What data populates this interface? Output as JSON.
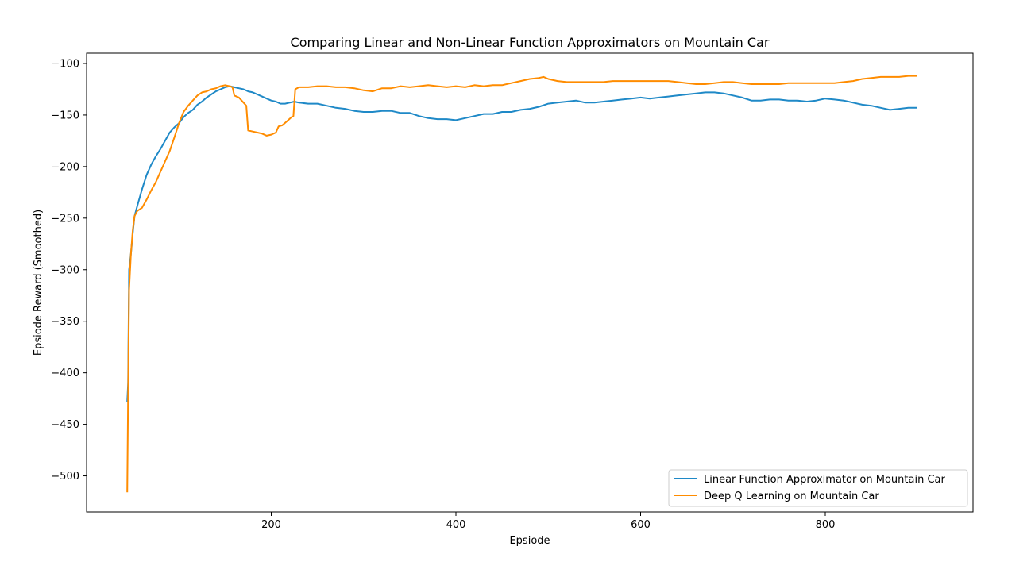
{
  "chart_data": {
    "type": "line",
    "title": "Comparing Linear and Non-Linear Function Approximators on Mountain Car",
    "xlabel": "Epsiode",
    "ylabel": "Epsiode Reward (Smoothed)",
    "xlim": [
      0,
      960
    ],
    "ylim": [
      -535,
      -90
    ],
    "x_ticks": [
      200,
      400,
      600,
      800
    ],
    "y_ticks": [
      -100,
      -150,
      -200,
      -250,
      -300,
      -350,
      -400,
      -450,
      -500
    ],
    "x_tick_labels": [
      "200",
      "400",
      "600",
      "800"
    ],
    "y_tick_labels": [
      "−100",
      "−150",
      "−200",
      "−250",
      "−300",
      "−350",
      "−400",
      "−450",
      "−500"
    ],
    "grid": false,
    "legend_position": "bottom-right",
    "series": [
      {
        "name": "Linear Function Approximator on Mountain Car",
        "color": "#1f89c7",
        "points": [
          [
            44,
            -428
          ],
          [
            45,
            -410
          ],
          [
            46,
            -300
          ],
          [
            48,
            -285
          ],
          [
            50,
            -265
          ],
          [
            52,
            -248
          ],
          [
            55,
            -238
          ],
          [
            60,
            -222
          ],
          [
            65,
            -208
          ],
          [
            70,
            -198
          ],
          [
            75,
            -190
          ],
          [
            80,
            -183
          ],
          [
            85,
            -175
          ],
          [
            90,
            -167
          ],
          [
            95,
            -162
          ],
          [
            100,
            -158
          ],
          [
            105,
            -152
          ],
          [
            110,
            -148
          ],
          [
            115,
            -145
          ],
          [
            120,
            -140
          ],
          [
            125,
            -137
          ],
          [
            130,
            -133
          ],
          [
            135,
            -130
          ],
          [
            140,
            -127
          ],
          [
            145,
            -125
          ],
          [
            150,
            -123
          ],
          [
            155,
            -122
          ],
          [
            160,
            -123
          ],
          [
            165,
            -124
          ],
          [
            170,
            -125
          ],
          [
            175,
            -127
          ],
          [
            180,
            -128
          ],
          [
            185,
            -130
          ],
          [
            190,
            -132
          ],
          [
            195,
            -134
          ],
          [
            200,
            -136
          ],
          [
            205,
            -137
          ],
          [
            210,
            -139
          ],
          [
            215,
            -139
          ],
          [
            220,
            -138
          ],
          [
            225,
            -137
          ],
          [
            230,
            -138
          ],
          [
            240,
            -139
          ],
          [
            250,
            -139
          ],
          [
            260,
            -141
          ],
          [
            270,
            -143
          ],
          [
            280,
            -144
          ],
          [
            290,
            -146
          ],
          [
            300,
            -147
          ],
          [
            310,
            -147
          ],
          [
            320,
            -146
          ],
          [
            330,
            -146
          ],
          [
            340,
            -148
          ],
          [
            350,
            -148
          ],
          [
            360,
            -151
          ],
          [
            370,
            -153
          ],
          [
            380,
            -154
          ],
          [
            390,
            -154
          ],
          [
            400,
            -155
          ],
          [
            410,
            -153
          ],
          [
            420,
            -151
          ],
          [
            430,
            -149
          ],
          [
            440,
            -149
          ],
          [
            450,
            -147
          ],
          [
            460,
            -147
          ],
          [
            470,
            -145
          ],
          [
            480,
            -144
          ],
          [
            490,
            -142
          ],
          [
            500,
            -139
          ],
          [
            510,
            -138
          ],
          [
            520,
            -137
          ],
          [
            530,
            -136
          ],
          [
            540,
            -138
          ],
          [
            550,
            -138
          ],
          [
            560,
            -137
          ],
          [
            570,
            -136
          ],
          [
            580,
            -135
          ],
          [
            590,
            -134
          ],
          [
            600,
            -133
          ],
          [
            610,
            -134
          ],
          [
            620,
            -133
          ],
          [
            630,
            -132
          ],
          [
            640,
            -131
          ],
          [
            650,
            -130
          ],
          [
            660,
            -129
          ],
          [
            670,
            -128
          ],
          [
            680,
            -128
          ],
          [
            690,
            -129
          ],
          [
            700,
            -131
          ],
          [
            710,
            -133
          ],
          [
            720,
            -136
          ],
          [
            730,
            -136
          ],
          [
            740,
            -135
          ],
          [
            750,
            -135
          ],
          [
            760,
            -136
          ],
          [
            770,
            -136
          ],
          [
            780,
            -137
          ],
          [
            790,
            -136
          ],
          [
            800,
            -134
          ],
          [
            810,
            -135
          ],
          [
            820,
            -136
          ],
          [
            830,
            -138
          ],
          [
            840,
            -140
          ],
          [
            850,
            -141
          ],
          [
            860,
            -143
          ],
          [
            870,
            -145
          ],
          [
            880,
            -144
          ],
          [
            890,
            -143
          ],
          [
            899,
            -143
          ]
        ]
      },
      {
        "name": "Deep Q Learning on Mountain Car",
        "color": "#ff8c00",
        "points": [
          [
            44,
            -516
          ],
          [
            45,
            -420
          ],
          [
            46,
            -320
          ],
          [
            48,
            -285
          ],
          [
            50,
            -262
          ],
          [
            52,
            -248
          ],
          [
            55,
            -243
          ],
          [
            60,
            -240
          ],
          [
            65,
            -232
          ],
          [
            70,
            -223
          ],
          [
            75,
            -215
          ],
          [
            80,
            -205
          ],
          [
            85,
            -195
          ],
          [
            90,
            -185
          ],
          [
            95,
            -172
          ],
          [
            100,
            -158
          ],
          [
            105,
            -147
          ],
          [
            110,
            -141
          ],
          [
            115,
            -136
          ],
          [
            120,
            -131
          ],
          [
            125,
            -128
          ],
          [
            130,
            -127
          ],
          [
            135,
            -125
          ],
          [
            140,
            -124
          ],
          [
            145,
            -122
          ],
          [
            150,
            -121
          ],
          [
            155,
            -122
          ],
          [
            158,
            -123
          ],
          [
            160,
            -131
          ],
          [
            165,
            -133
          ],
          [
            170,
            -138
          ],
          [
            173,
            -141
          ],
          [
            175,
            -165
          ],
          [
            180,
            -166
          ],
          [
            185,
            -167
          ],
          [
            190,
            -168
          ],
          [
            195,
            -170
          ],
          [
            200,
            -169
          ],
          [
            205,
            -167
          ],
          [
            208,
            -161
          ],
          [
            212,
            -160
          ],
          [
            217,
            -156
          ],
          [
            222,
            -152
          ],
          [
            224,
            -151
          ],
          [
            226,
            -125
          ],
          [
            230,
            -123
          ],
          [
            240,
            -123
          ],
          [
            250,
            -122
          ],
          [
            260,
            -122
          ],
          [
            270,
            -123
          ],
          [
            280,
            -123
          ],
          [
            290,
            -124
          ],
          [
            300,
            -126
          ],
          [
            310,
            -127
          ],
          [
            320,
            -124
          ],
          [
            330,
            -124
          ],
          [
            340,
            -122
          ],
          [
            350,
            -123
          ],
          [
            360,
            -122
          ],
          [
            370,
            -121
          ],
          [
            380,
            -122
          ],
          [
            390,
            -123
          ],
          [
            400,
            -122
          ],
          [
            410,
            -123
          ],
          [
            420,
            -121
          ],
          [
            430,
            -122
          ],
          [
            440,
            -121
          ],
          [
            450,
            -121
          ],
          [
            460,
            -119
          ],
          [
            470,
            -117
          ],
          [
            480,
            -115
          ],
          [
            490,
            -114
          ],
          [
            495,
            -113
          ],
          [
            500,
            -115
          ],
          [
            510,
            -117
          ],
          [
            520,
            -118
          ],
          [
            530,
            -118
          ],
          [
            540,
            -118
          ],
          [
            550,
            -118
          ],
          [
            560,
            -118
          ],
          [
            570,
            -117
          ],
          [
            580,
            -117
          ],
          [
            590,
            -117
          ],
          [
            600,
            -117
          ],
          [
            610,
            -117
          ],
          [
            620,
            -117
          ],
          [
            630,
            -117
          ],
          [
            640,
            -118
          ],
          [
            650,
            -119
          ],
          [
            660,
            -120
          ],
          [
            670,
            -120
          ],
          [
            680,
            -119
          ],
          [
            690,
            -118
          ],
          [
            700,
            -118
          ],
          [
            710,
            -119
          ],
          [
            720,
            -120
          ],
          [
            730,
            -120
          ],
          [
            740,
            -120
          ],
          [
            750,
            -120
          ],
          [
            760,
            -119
          ],
          [
            770,
            -119
          ],
          [
            780,
            -119
          ],
          [
            790,
            -119
          ],
          [
            800,
            -119
          ],
          [
            810,
            -119
          ],
          [
            820,
            -118
          ],
          [
            830,
            -117
          ],
          [
            840,
            -115
          ],
          [
            850,
            -114
          ],
          [
            860,
            -113
          ],
          [
            870,
            -113
          ],
          [
            880,
            -113
          ],
          [
            890,
            -112
          ],
          [
            899,
            -112
          ]
        ]
      }
    ]
  }
}
